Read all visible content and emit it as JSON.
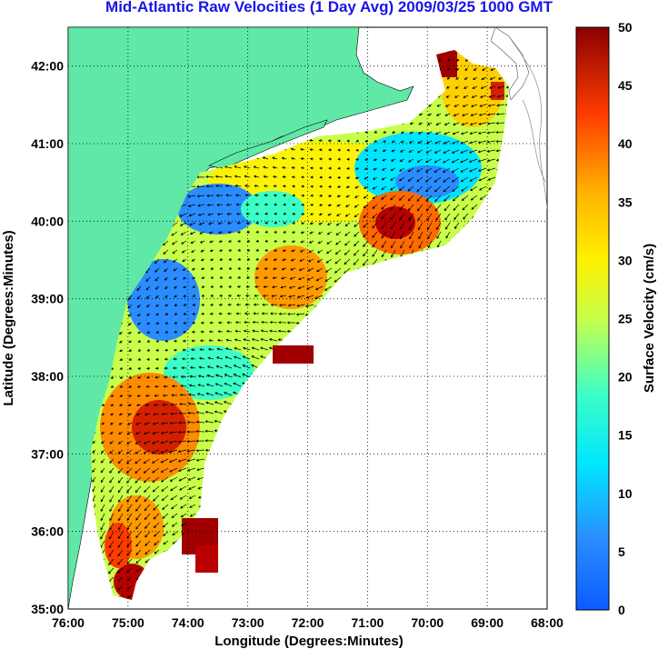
{
  "title": "Mid-Atlantic Raw Velocities (1 Day Avg) 2009/03/25 1000 GMT",
  "chart_data": {
    "type": "map",
    "xlabel": "Longitude (Degrees:Minutes)",
    "ylabel": "Latitude (Degrees:Minutes)",
    "xlim": [
      -76,
      -68
    ],
    "ylim": [
      35,
      42.5
    ],
    "x_ticks": [
      "76:00",
      "75:00",
      "74:00",
      "73:00",
      "72:00",
      "71:00",
      "70:00",
      "69:00",
      "68:00"
    ],
    "y_ticks": [
      "35:00",
      "36:00",
      "37:00",
      "38:00",
      "39:00",
      "40:00",
      "41:00",
      "42:00"
    ],
    "colorbar": {
      "label": "Surface Velocity (cm/s)",
      "min": 0,
      "max": 50,
      "ticks": [
        "0",
        "5",
        "10",
        "15",
        "20",
        "25",
        "30",
        "35",
        "40",
        "45",
        "50"
      ]
    },
    "land_color": "#5fe8a6",
    "grid": "dotted"
  }
}
